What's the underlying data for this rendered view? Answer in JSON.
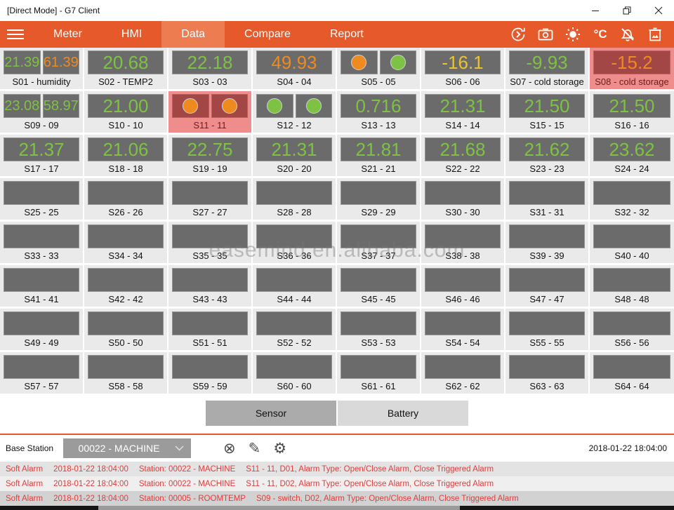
{
  "window": {
    "title": "[Direct Mode] - G7 Client"
  },
  "nav": {
    "tabs": [
      {
        "label": "Meter"
      },
      {
        "label": "HMI"
      },
      {
        "label": "Data",
        "active": true
      },
      {
        "label": "Compare"
      },
      {
        "label": "Report"
      }
    ],
    "celsius_label": "°C",
    "icons": [
      "sync-icon",
      "camera-icon",
      "brightness-icon",
      "celsius-icon",
      "bell-muted-icon",
      "delete-image-icon"
    ]
  },
  "colors": {
    "green": "#7dc242",
    "orange": "#ef8a1e",
    "yellow": "#e9c431",
    "accent": "#e6592a",
    "alarm_cell_bg": "#ef8c8c",
    "alarm_value_box": "#a34646"
  },
  "grid": {
    "cells": [
      {
        "label": "S01 - humidity",
        "type": "dual",
        "values": [
          {
            "v": "21.39",
            "c": "green"
          },
          {
            "v": "61.39",
            "c": "orange"
          }
        ]
      },
      {
        "label": "S02 - TEMP2",
        "type": "single",
        "values": [
          {
            "v": "20.68",
            "c": "green"
          }
        ]
      },
      {
        "label": "S03 - 03",
        "type": "single",
        "values": [
          {
            "v": "22.18",
            "c": "green"
          }
        ]
      },
      {
        "label": "S04 - 04",
        "type": "single",
        "values": [
          {
            "v": "49.93",
            "c": "orange"
          }
        ]
      },
      {
        "label": "S05 - 05",
        "type": "circles",
        "dots": [
          "orange",
          "green"
        ]
      },
      {
        "label": "S06 - 06",
        "type": "single",
        "values": [
          {
            "v": "-16.1",
            "c": "yellow"
          }
        ]
      },
      {
        "label": "S07 - cold storage",
        "type": "single",
        "values": [
          {
            "v": "-9.93",
            "c": "green"
          }
        ]
      },
      {
        "label": "S08 - cold storage",
        "type": "single",
        "alarm": true,
        "values": [
          {
            "v": "-15.2",
            "c": "orange"
          }
        ]
      },
      {
        "label": "S09 - 09",
        "type": "dual",
        "values": [
          {
            "v": "23.08",
            "c": "green"
          },
          {
            "v": "58.97",
            "c": "green"
          }
        ]
      },
      {
        "label": "S10 - 10",
        "type": "single",
        "values": [
          {
            "v": "21.00",
            "c": "green"
          }
        ]
      },
      {
        "label": "S11 - 11",
        "type": "circles",
        "alarm": true,
        "dots": [
          "orange",
          "orange"
        ]
      },
      {
        "label": "S12 - 12",
        "type": "circles",
        "dots": [
          "green",
          "green"
        ]
      },
      {
        "label": "S13 - 13",
        "type": "single",
        "values": [
          {
            "v": "0.716",
            "c": "green"
          }
        ]
      },
      {
        "label": "S14 - 14",
        "type": "single",
        "values": [
          {
            "v": "21.31",
            "c": "green"
          }
        ]
      },
      {
        "label": "S15 - 15",
        "type": "single",
        "values": [
          {
            "v": "21.50",
            "c": "green"
          }
        ]
      },
      {
        "label": "S16 - 16",
        "type": "single",
        "values": [
          {
            "v": "21.50",
            "c": "green"
          }
        ]
      },
      {
        "label": "S17 - 17",
        "type": "single",
        "values": [
          {
            "v": "21.37",
            "c": "green"
          }
        ]
      },
      {
        "label": "S18 - 18",
        "type": "single",
        "values": [
          {
            "v": "21.06",
            "c": "green"
          }
        ]
      },
      {
        "label": "S19 - 19",
        "type": "single",
        "values": [
          {
            "v": "22.75",
            "c": "green"
          }
        ]
      },
      {
        "label": "S20 - 20",
        "type": "single",
        "values": [
          {
            "v": "21.31",
            "c": "green"
          }
        ]
      },
      {
        "label": "S21 - 21",
        "type": "single",
        "values": [
          {
            "v": "21.81",
            "c": "green"
          }
        ]
      },
      {
        "label": "S22 - 22",
        "type": "single",
        "values": [
          {
            "v": "21.68",
            "c": "green"
          }
        ]
      },
      {
        "label": "S23 - 23",
        "type": "single",
        "values": [
          {
            "v": "21.62",
            "c": "green"
          }
        ]
      },
      {
        "label": "S24 - 24",
        "type": "single",
        "values": [
          {
            "v": "23.62",
            "c": "green"
          }
        ]
      },
      {
        "label": "S25 - 25",
        "type": "empty"
      },
      {
        "label": "S26 - 26",
        "type": "empty"
      },
      {
        "label": "S27 - 27",
        "type": "empty"
      },
      {
        "label": "S28 - 28",
        "type": "empty"
      },
      {
        "label": "S29 - 29",
        "type": "empty"
      },
      {
        "label": "S30 - 30",
        "type": "empty"
      },
      {
        "label": "S31 - 31",
        "type": "empty"
      },
      {
        "label": "S32 - 32",
        "type": "empty"
      },
      {
        "label": "S33 - 33",
        "type": "empty"
      },
      {
        "label": "S34 - 34",
        "type": "empty"
      },
      {
        "label": "S35 - 35",
        "type": "empty"
      },
      {
        "label": "S36 - 36",
        "type": "empty"
      },
      {
        "label": "S37 - 37",
        "type": "empty"
      },
      {
        "label": "S38 - 38",
        "type": "empty"
      },
      {
        "label": "S39 - 39",
        "type": "empty"
      },
      {
        "label": "S40 - 40",
        "type": "empty"
      },
      {
        "label": "S41 - 41",
        "type": "empty"
      },
      {
        "label": "S42 - 42",
        "type": "empty"
      },
      {
        "label": "S43 - 43",
        "type": "empty"
      },
      {
        "label": "S44 - 44",
        "type": "empty"
      },
      {
        "label": "S45 - 45",
        "type": "empty"
      },
      {
        "label": "S46 - 46",
        "type": "empty"
      },
      {
        "label": "S47 - 47",
        "type": "empty"
      },
      {
        "label": "S48 - 48",
        "type": "empty"
      },
      {
        "label": "S49 - 49",
        "type": "empty"
      },
      {
        "label": "S50 - 50",
        "type": "empty"
      },
      {
        "label": "S51 - 51",
        "type": "empty"
      },
      {
        "label": "S52 - 52",
        "type": "empty"
      },
      {
        "label": "S53 - 53",
        "type": "empty"
      },
      {
        "label": "S54 - 54",
        "type": "empty"
      },
      {
        "label": "S55 - 55",
        "type": "empty"
      },
      {
        "label": "S56 - 56",
        "type": "empty"
      },
      {
        "label": "S57 - 57",
        "type": "empty"
      },
      {
        "label": "S58 - 58",
        "type": "empty"
      },
      {
        "label": "S59 - 59",
        "type": "empty"
      },
      {
        "label": "S60 - 60",
        "type": "empty"
      },
      {
        "label": "S61 - 61",
        "type": "empty"
      },
      {
        "label": "S62 - 62",
        "type": "empty"
      },
      {
        "label": "S63 - 63",
        "type": "empty"
      },
      {
        "label": "S64 - 64",
        "type": "empty"
      }
    ]
  },
  "watermark": "easemind.en.alibaba.com",
  "toggle": {
    "sensor": "Sensor",
    "battery": "Battery"
  },
  "station_bar": {
    "label": "Base Station",
    "selected": "00022 - MACHINE",
    "icons": [
      "cancel-icon",
      "edit-icon",
      "settings-icon"
    ],
    "timestamp": "2018-01-22 18:04:00"
  },
  "alarms": [
    {
      "type": "Soft Alarm",
      "time": "2018-01-22 18:04:00",
      "station": "Station: 00022 - MACHINE",
      "detail": "S11 - 11, D01, Alarm Type: Open/Close Alarm, Close Triggered Alarm"
    },
    {
      "type": "Soft Alarm",
      "time": "2018-01-22 18:04:00",
      "station": "Station: 00022 - MACHINE",
      "detail": "S11 - 11, D02, Alarm Type: Open/Close Alarm, Close Triggered Alarm"
    },
    {
      "type": "Soft Alarm",
      "time": "2018-01-22 18:04:00",
      "station": "Station: 00005 - ROOMTEMP",
      "detail": "S09 - switch, D02, Alarm Type: Open/Close Alarm, Close Triggered Alarm"
    }
  ]
}
